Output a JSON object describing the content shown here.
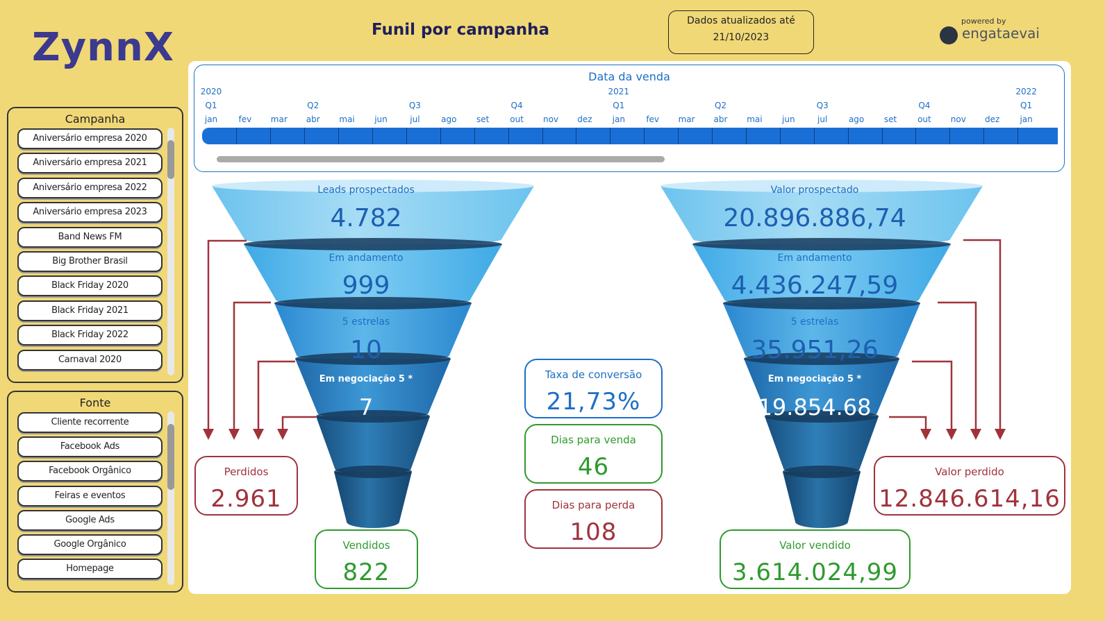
{
  "header": {
    "logo": "ZynnX",
    "title": "Funil por campanha",
    "updated_label": "Dados atualizados até",
    "updated_date": "21/10/2023",
    "powered_by": "powered by",
    "brand": "engataevai"
  },
  "campanha": {
    "title": "Campanha",
    "items": [
      "Aniversário empresa 2020",
      "Aniversário empresa 2021",
      "Aniversário empresa 2022",
      "Aniversário empresa 2023",
      "Band News FM",
      "Big Brother Brasil",
      "Black Friday 2020",
      "Black Friday 2021",
      "Black Friday 2022",
      "Carnaval 2020"
    ]
  },
  "fonte": {
    "title": "Fonte",
    "items": [
      "Cliente recorrente",
      "Facebook Ads",
      "Facebook Orgânico",
      "Feiras e eventos",
      "Google Ads",
      "Google Orgânico",
      "Homepage"
    ]
  },
  "timeline": {
    "title": "Data da venda",
    "columns": [
      {
        "year": "2020",
        "quarter": "Q1",
        "month": "jan"
      },
      {
        "month": "fev"
      },
      {
        "month": "mar"
      },
      {
        "quarter": "Q2",
        "month": "abr"
      },
      {
        "month": "mai"
      },
      {
        "month": "jun"
      },
      {
        "quarter": "Q3",
        "month": "jul"
      },
      {
        "month": "ago"
      },
      {
        "month": "set"
      },
      {
        "quarter": "Q4",
        "month": "out"
      },
      {
        "month": "nov"
      },
      {
        "month": "dez"
      },
      {
        "year": "2021",
        "quarter": "Q1",
        "month": "jan"
      },
      {
        "month": "fev"
      },
      {
        "month": "mar"
      },
      {
        "quarter": "Q2",
        "month": "abr"
      },
      {
        "month": "mai"
      },
      {
        "month": "jun"
      },
      {
        "quarter": "Q3",
        "month": "jul"
      },
      {
        "month": "ago"
      },
      {
        "month": "set"
      },
      {
        "quarter": "Q4",
        "month": "out"
      },
      {
        "month": "nov"
      },
      {
        "month": "dez"
      },
      {
        "year": "2022",
        "quarter": "Q1",
        "month": "jan"
      }
    ]
  },
  "funnel_left": {
    "levels": [
      {
        "label": "Leads prospectados",
        "value": "4.782"
      },
      {
        "label": "Em andamento",
        "value": "999"
      },
      {
        "label": "5 estrelas",
        "value": "10"
      },
      {
        "label": "Em negociação 5 *",
        "value": "7"
      }
    ],
    "lost": {
      "label": "Perdidos",
      "value": "2.961"
    },
    "sold": {
      "label": "Vendidos",
      "value": "822"
    }
  },
  "funnel_right": {
    "levels": [
      {
        "label": "Valor prospectado",
        "value": "20.896.886,74"
      },
      {
        "label": "Em andamento",
        "value": "4.436.247,59"
      },
      {
        "label": "5 estrelas",
        "value": "35.951,26"
      },
      {
        "label": "Em negociação 5 *",
        "value": "19.854.68"
      }
    ],
    "lost": {
      "label": "Valor perdido",
      "value": "12.846.614,16"
    },
    "sold": {
      "label": "Valor vendido",
      "value": "3.614.024,99"
    }
  },
  "kpis": [
    {
      "label": "Taxa de conversão",
      "value": "21,73%"
    },
    {
      "label": "Dias para venda",
      "value": "46"
    },
    {
      "label": "Dias para perda",
      "value": "108"
    }
  ]
}
